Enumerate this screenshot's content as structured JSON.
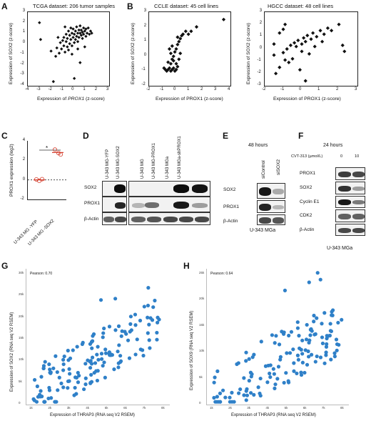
{
  "panels": {
    "A": {
      "letter": "A",
      "title": "TCGA dataset: 206 tumor samples",
      "xlabel_pre": "Expression of ",
      "xlabel_gene": "PROX1",
      "xlabel_post": " (z-score)",
      "ylabel": "Expression of SOX2 (z-score)",
      "xticks": [
        "-4",
        "-3",
        "-2",
        "-1",
        "0",
        "1",
        "2",
        "3"
      ],
      "yticks": [
        "3",
        "2",
        "1",
        "0",
        "-1",
        "-2",
        "-3",
        "-4"
      ]
    },
    "B": {
      "letter": "B",
      "left_title": "CCLE dataset: 45 cell lines",
      "right_title": "HGCC dataset: 48 cell lines",
      "left_xticks": [
        "-2",
        "-1",
        "0",
        "1",
        "2",
        "3",
        "4"
      ],
      "right_xticks": [
        "-2",
        "-1",
        "0",
        "1",
        "2",
        "3"
      ],
      "left_yticks": [
        "3",
        "2",
        "1",
        "0",
        "-1",
        "-2"
      ],
      "right_yticks": [
        "3",
        "2",
        "1",
        "0",
        "-1",
        "-2",
        "-3"
      ],
      "xlabel": "Expression of PROX1 (z-score)",
      "ylabel": "Expression of SOX2 (z-score)"
    },
    "C": {
      "letter": "C",
      "ylabel": "PROX1 expression (log2)",
      "yticks": [
        "4",
        "2",
        "0",
        "-2"
      ],
      "star": "*",
      "xcats": [
        "U-343 MG -YFP",
        "U-343 MG -SOX2"
      ]
    },
    "D": {
      "letter": "D",
      "lanes": [
        "U-343 MG-YFP",
        "U-343 MG-SOX2",
        "U-343 MG",
        "U-343 MG-PROX1",
        "U-343 MGa",
        "U-343 MGa-shPROX1"
      ],
      "rows": [
        "SOX2",
        "PROX1",
        "β-Actin"
      ]
    },
    "E": {
      "letter": "E",
      "time": "48 hours",
      "lanes": [
        "siControl",
        "siSOX2"
      ],
      "rows": [
        "SOX2",
        "PROX1",
        "β-Actin"
      ],
      "cell": "U-343 MGa"
    },
    "F": {
      "letter": "F",
      "time": "24 hours",
      "drug": "CVT-313 (µmol/L)",
      "doses": [
        "0",
        "10"
      ],
      "rows": [
        "PROX1",
        "SOX2",
        "Cyclin E1",
        "CDK2",
        "β-Actin"
      ],
      "cell": "U-343 MGa"
    },
    "G": {
      "letter": "G",
      "pearson": "Pearson: 0.70",
      "xlabel": "Expression of THRAP3 (RNA seq V2 RSEM)",
      "ylabel": "Expression of SOX2 (RNA seq V2 RSEM)",
      "xticks": [
        "1k",
        "2k",
        "3k",
        "4k",
        "5k",
        "6k",
        "7k",
        "8k"
      ],
      "yticks": [
        "30k",
        "25k",
        "20k",
        "15k",
        "10k",
        "5k",
        "0"
      ]
    },
    "H": {
      "letter": "H",
      "pearson": "Pearson: 0.64",
      "xlabel": "Expression of THRAP3 (RNA seq V2 RSEM)",
      "ylabel": "Expression of SOX9 (RNA seq V2 RSEM)",
      "xticks": [
        "1k",
        "2k",
        "3k",
        "4k",
        "5k",
        "6k",
        "7k",
        "8k"
      ],
      "yticks": [
        "25k",
        "20k",
        "15k",
        "10k",
        "5k",
        "0"
      ]
    }
  },
  "colors": {
    "scatter_blue": "#2f80c8",
    "c_red": "#d43b2a",
    "ink": "#111111"
  },
  "chart_data": [
    {
      "type": "scatter",
      "panel": "A",
      "xlim": [
        -4,
        3
      ],
      "ylim": [
        -4,
        3
      ],
      "points": [
        [
          -3.0,
          2.0
        ],
        [
          -2.9,
          0.4
        ],
        [
          -2.0,
          -0.7
        ],
        [
          -1.8,
          -3.6
        ],
        [
          -1.6,
          -1.2
        ],
        [
          -1.5,
          -0.4
        ],
        [
          -1.3,
          -0.9
        ],
        [
          -1.2,
          0.1
        ],
        [
          -1.1,
          -0.5
        ],
        [
          -1.0,
          0.3
        ],
        [
          -0.9,
          -0.2
        ],
        [
          -0.9,
          0.6
        ],
        [
          -0.8,
          -0.8
        ],
        [
          -0.7,
          0.2
        ],
        [
          -0.7,
          0.9
        ],
        [
          -0.6,
          -0.3
        ],
        [
          -0.6,
          0.5
        ],
        [
          -0.5,
          1.2
        ],
        [
          -0.5,
          -0.6
        ],
        [
          -0.4,
          0.0
        ],
        [
          -0.4,
          0.8
        ],
        [
          -0.3,
          0.4
        ],
        [
          -0.3,
          1.5
        ],
        [
          -0.2,
          -0.2
        ],
        [
          -0.2,
          1.0
        ],
        [
          -0.1,
          0.6
        ],
        [
          -0.1,
          1.4
        ],
        [
          0.0,
          0.1
        ],
        [
          0.0,
          0.9
        ],
        [
          0.1,
          1.2
        ],
        [
          0.1,
          0.4
        ],
        [
          0.2,
          1.6
        ],
        [
          0.2,
          0.7
        ],
        [
          0.3,
          1.0
        ],
        [
          0.3,
          0.2
        ],
        [
          0.4,
          1.3
        ],
        [
          0.4,
          0.6
        ],
        [
          0.5,
          1.0
        ],
        [
          0.5,
          1.7
        ],
        [
          0.6,
          0.8
        ],
        [
          0.6,
          1.3
        ],
        [
          0.7,
          1.1
        ],
        [
          0.7,
          0.5
        ],
        [
          0.8,
          1.5
        ],
        [
          0.8,
          0.9
        ],
        [
          0.9,
          1.2
        ],
        [
          1.0,
          0.7
        ],
        [
          1.0,
          1.4
        ],
        [
          1.1,
          1.0
        ],
        [
          1.2,
          1.5
        ],
        [
          1.3,
          0.9
        ],
        [
          1.4,
          1.2
        ],
        [
          1.5,
          1.0
        ],
        [
          0.9,
          -0.3
        ],
        [
          0.0,
          -3.3
        ],
        [
          0.5,
          -1.8
        ],
        [
          -0.2,
          -1.0
        ],
        [
          0.3,
          -0.5
        ],
        [
          -1.4,
          0.6
        ],
        [
          -0.8,
          1.6
        ]
      ]
    },
    {
      "type": "scatter",
      "panel": "B-CCLE",
      "xlim": [
        -2,
        4
      ],
      "ylim": [
        -2,
        3
      ],
      "points": [
        [
          3.5,
          2.5
        ],
        [
          -0.9,
          -0.8
        ],
        [
          -0.8,
          -0.9
        ],
        [
          -0.7,
          -1.0
        ],
        [
          -0.6,
          -0.9
        ],
        [
          -0.5,
          -0.8
        ],
        [
          -0.4,
          -1.0
        ],
        [
          -0.3,
          -0.9
        ],
        [
          -0.2,
          -0.8
        ],
        [
          -0.1,
          -1.0
        ],
        [
          0.0,
          -0.9
        ],
        [
          0.1,
          -0.7
        ],
        [
          -0.4,
          -0.5
        ],
        [
          -0.3,
          -0.2
        ],
        [
          -0.2,
          0.0
        ],
        [
          -0.1,
          0.3
        ],
        [
          0.0,
          0.5
        ],
        [
          0.1,
          0.8
        ],
        [
          0.2,
          1.0
        ],
        [
          0.3,
          1.2
        ],
        [
          0.4,
          1.4
        ],
        [
          0.5,
          1.5
        ],
        [
          0.7,
          1.7
        ],
        [
          0.9,
          1.5
        ],
        [
          1.1,
          1.7
        ],
        [
          1.5,
          2.0
        ],
        [
          -0.5,
          0.5
        ],
        [
          -0.4,
          0.2
        ],
        [
          -0.2,
          -0.3
        ],
        [
          0.0,
          -0.5
        ],
        [
          0.2,
          -0.2
        ],
        [
          -0.6,
          -0.4
        ],
        [
          0.3,
          0.2
        ],
        [
          -0.3,
          0.7
        ],
        [
          0.1,
          1.3
        ]
      ]
    },
    {
      "type": "scatter",
      "panel": "B-HGCC",
      "xlim": [
        -2,
        3
      ],
      "ylim": [
        -3,
        3
      ],
      "points": [
        [
          -0.9,
          2.0
        ],
        [
          -1.0,
          1.6
        ],
        [
          -1.2,
          1.3
        ],
        [
          -1.5,
          0.4
        ],
        [
          -1.5,
          -0.5
        ],
        [
          -1.4,
          -2.0
        ],
        [
          -1.2,
          -1.5
        ],
        [
          -1.0,
          -0.3
        ],
        [
          -0.8,
          0.0
        ],
        [
          -0.6,
          0.3
        ],
        [
          -0.4,
          0.5
        ],
        [
          -0.3,
          0.2
        ],
        [
          -0.2,
          0.7
        ],
        [
          0.0,
          0.4
        ],
        [
          0.1,
          0.9
        ],
        [
          0.2,
          0.6
        ],
        [
          0.3,
          1.1
        ],
        [
          0.5,
          0.8
        ],
        [
          0.6,
          1.3
        ],
        [
          0.8,
          1.0
        ],
        [
          1.0,
          1.5
        ],
        [
          1.2,
          1.2
        ],
        [
          1.4,
          1.7
        ],
        [
          1.6,
          1.5
        ],
        [
          2.0,
          2.0
        ],
        [
          2.2,
          0.3
        ],
        [
          2.3,
          -0.2
        ],
        [
          -0.1,
          -1.7
        ],
        [
          0.2,
          -2.6
        ],
        [
          -0.5,
          -0.8
        ],
        [
          -0.7,
          -1.1
        ],
        [
          0.4,
          -0.4
        ],
        [
          0.7,
          0.2
        ],
        [
          -0.9,
          -0.9
        ],
        [
          0.0,
          -0.2
        ],
        [
          1.1,
          0.6
        ]
      ]
    },
    {
      "type": "scatter",
      "panel": "C",
      "categories": [
        "U-343 MG -YFP",
        "U-343 MG -SOX2"
      ],
      "values": [
        0.0,
        2.8
      ],
      "ylim": [
        -2,
        4
      ]
    },
    {
      "type": "scatter",
      "panel": "G",
      "pearson": 0.7,
      "xlim": [
        1,
        8
      ],
      "ylim": [
        0,
        30
      ]
    },
    {
      "type": "scatter",
      "panel": "H",
      "pearson": 0.64,
      "xlim": [
        1,
        8
      ],
      "ylim": [
        0,
        25
      ]
    }
  ]
}
